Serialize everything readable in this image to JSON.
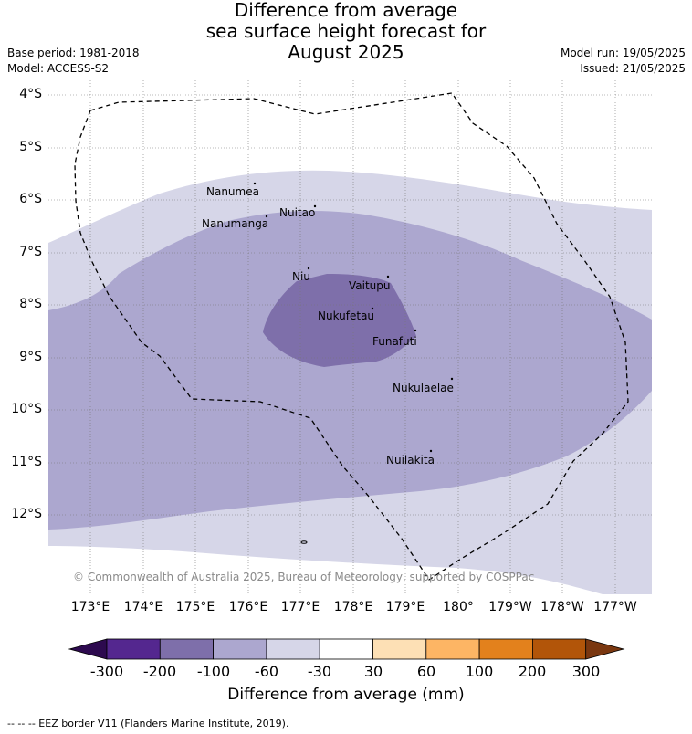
{
  "title": {
    "line1": "Difference from average",
    "line2": "sea surface height forecast for",
    "line3": "August 2025"
  },
  "meta_left": {
    "base_period": "Base period: 1981-2018",
    "model": "Model: ACCESS-S2"
  },
  "meta_right": {
    "model_run": "Model run: 19/05/2025",
    "issued": "Issued: 21/05/2025"
  },
  "latitude_labels": [
    "4°S",
    "5°S",
    "6°S",
    "7°S",
    "8°S",
    "9°S",
    "10°S",
    "11°S",
    "12°S"
  ],
  "longitude_labels": [
    "173°E",
    "174°E",
    "175°E",
    "176°E",
    "177°E",
    "178°E",
    "179°E",
    "180°",
    "179°W",
    "178°W",
    "177°W"
  ],
  "places": [
    "Nanumea",
    "Nuitao",
    "Nanumanga",
    "Niu",
    "Vaitupu",
    "Nukufetau",
    "Funafuti",
    "Nukulaelae",
    "Nuilakita"
  ],
  "copyright": "© Commonwealth of Australia 2025, Bureau of Meteorology, supported by COSPPac",
  "colorbar": {
    "ticks": [
      "-300",
      "-200",
      "-100",
      "-60",
      "-30",
      "30",
      "60",
      "100",
      "200",
      "300"
    ],
    "colors": [
      "#2d0a4f",
      "#54278f",
      "#7e6faa",
      "#aca7cf",
      "#d6d6e8",
      "#ffffff",
      "#fde0b5",
      "#fdb564",
      "#e3811c",
      "#b25509",
      "#7a3710"
    ],
    "title": "Difference from average (mm)"
  },
  "eez_note": "--  --  -- EEZ border V11 (Flanders Marine Institute, 2019)."
}
